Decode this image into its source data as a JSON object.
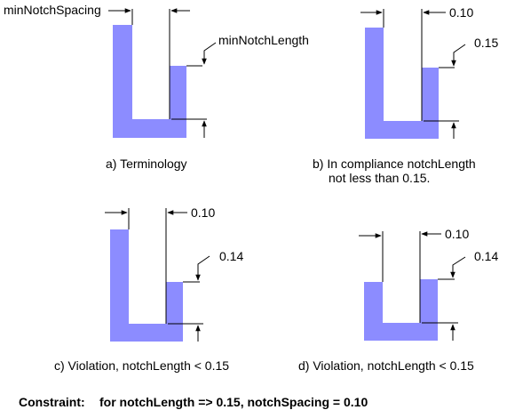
{
  "colors": {
    "shape_fill": "#8c8cff",
    "line": "#000000",
    "background": "#ffffff"
  },
  "panels": {
    "a": {
      "label_spacing": "minNotchSpacing",
      "label_length": "minNotchLength",
      "caption": "a) Terminology"
    },
    "b": {
      "spacing_value": "0.10",
      "length_value": "0.15",
      "caption_line1": "b) In compliance notchLength",
      "caption_line2": "not less than 0.15."
    },
    "c": {
      "spacing_value": "0.10",
      "length_value": "0.14",
      "caption": "c) Violation, notchLength < 0.15"
    },
    "d": {
      "spacing_value": "0.10",
      "length_value": "0.14",
      "caption": "d) Violation, notchLength < 0.15"
    }
  },
  "constraint": {
    "label": "Constraint:",
    "text": "for notchLength => 0.15,  notchSpacing = 0.10"
  }
}
